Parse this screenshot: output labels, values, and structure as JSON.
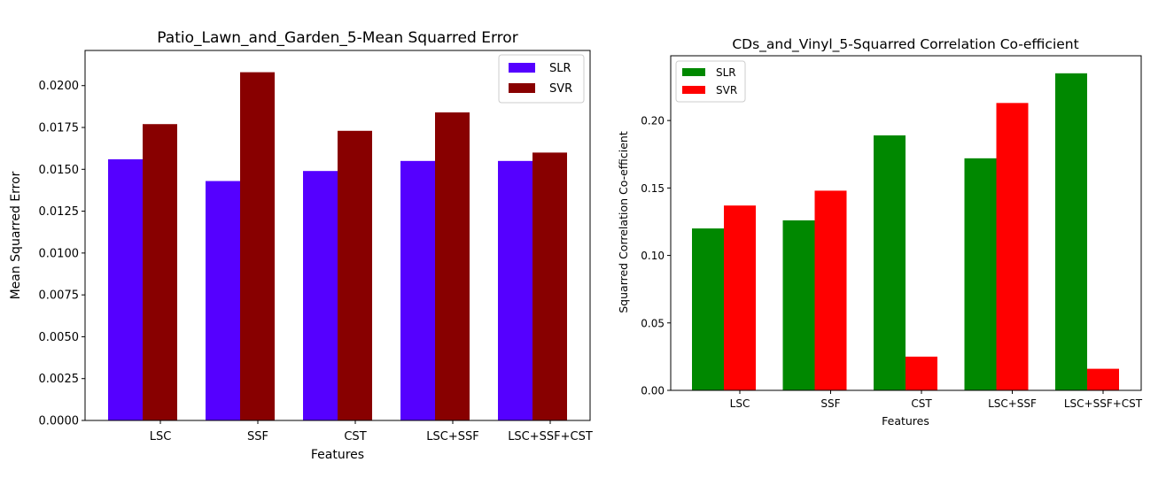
{
  "chart_data": [
    {
      "type": "bar",
      "title": "Patio_Lawn_and_Garden_5-Mean Squarred Error",
      "xlabel": "Features",
      "ylabel": "Mean Squarred Error",
      "categories": [
        "LSC",
        "SSF",
        "CST",
        "LSC+SSF",
        "LSC+SSF+CST"
      ],
      "series": [
        {
          "name": "SLR",
          "color": "#5500ff",
          "values": [
            0.0156,
            0.0143,
            0.0149,
            0.0155,
            0.0155
          ]
        },
        {
          "name": "SVR",
          "color": "#880000",
          "values": [
            0.0177,
            0.0208,
            0.0173,
            0.0184,
            0.016
          ]
        }
      ],
      "ylim": [
        0,
        0.0221
      ],
      "yticks": [
        "0.0000",
        "0.0025",
        "0.0050",
        "0.0075",
        "0.0100",
        "0.0125",
        "0.0150",
        "0.0175",
        "0.0200"
      ],
      "legend_position": "top-right"
    },
    {
      "type": "bar",
      "title": "CDs_and_Vinyl_5-Squarred Correlation Co-efficient",
      "xlabel": "Features",
      "ylabel": "Squarred Correlation Co-efficient",
      "categories": [
        "LSC",
        "SSF",
        "CST",
        "LSC+SSF",
        "LSC+SSF+CST"
      ],
      "series": [
        {
          "name": "SLR",
          "color": "#008800",
          "values": [
            0.12,
            0.126,
            0.189,
            0.172,
            0.235
          ]
        },
        {
          "name": "SVR",
          "color": "#ff0000",
          "values": [
            0.137,
            0.148,
            0.025,
            0.213,
            0.016
          ]
        }
      ],
      "ylim": [
        0,
        0.248
      ],
      "yticks": [
        "0.00",
        "0.05",
        "0.10",
        "0.15",
        "0.20"
      ],
      "legend_position": "top-left"
    }
  ]
}
